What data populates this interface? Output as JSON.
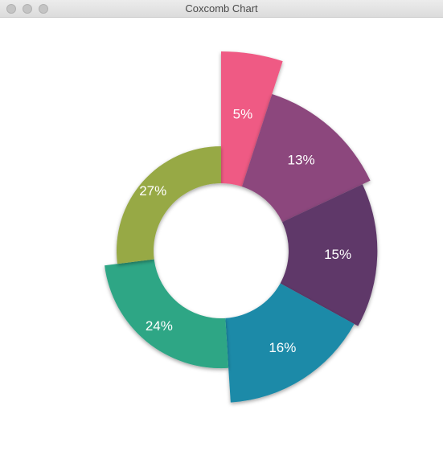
{
  "window": {
    "title": "Coxcomb Chart"
  },
  "chart_data": {
    "type": "pie",
    "subtype": "coxcomb",
    "inner_radius_ratio": 0.5,
    "start_angle_deg": 0,
    "direction": "clockwise",
    "slices": [
      {
        "label": "5%",
        "value": 5,
        "color": "#ef5a84"
      },
      {
        "label": "13%",
        "value": 13,
        "color": "#8c477d"
      },
      {
        "label": "15%",
        "value": 15,
        "color": "#5e3769"
      },
      {
        "label": "16%",
        "value": 16,
        "color": "#1a8aa8"
      },
      {
        "label": "24%",
        "value": 24,
        "color": "#2ea685"
      },
      {
        "label": "27%",
        "value": 27,
        "color": "#97a945"
      }
    ],
    "label_color": "#ffffff"
  }
}
